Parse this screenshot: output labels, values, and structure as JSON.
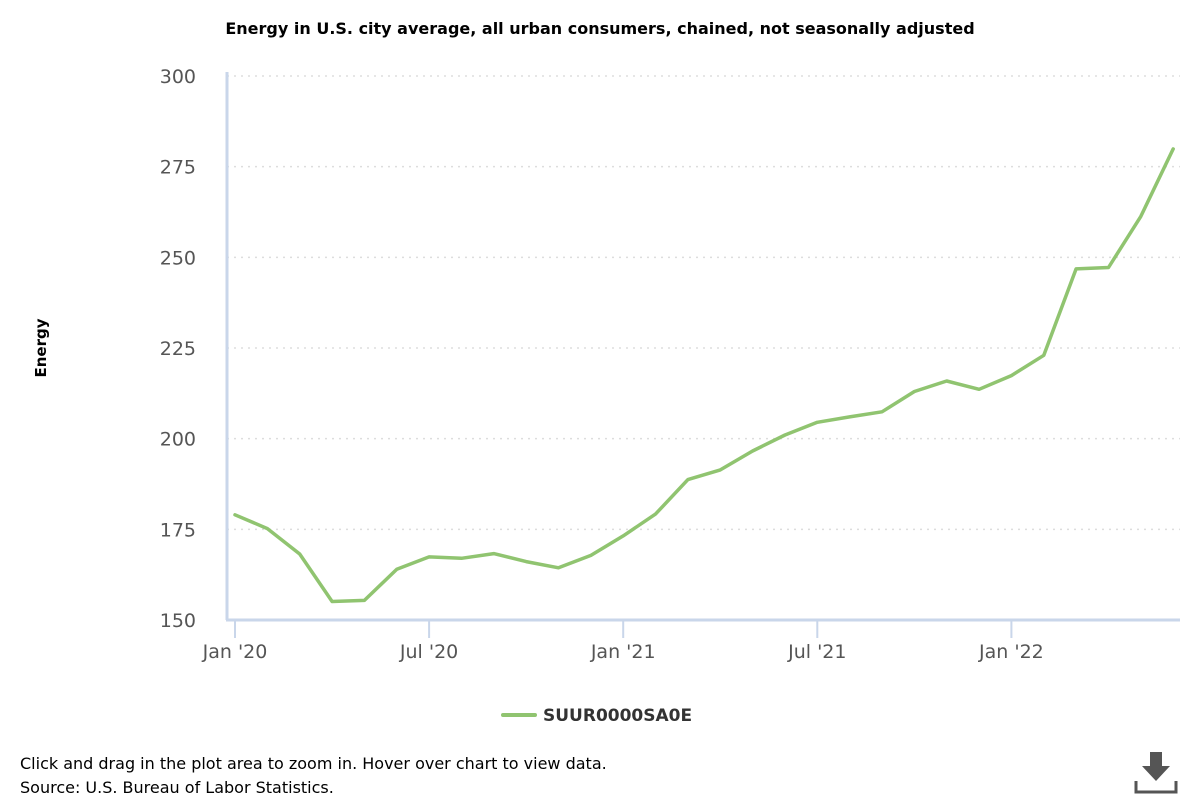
{
  "colors": {
    "series": "#90c470",
    "axis": "#c9d6ea",
    "grid": "#dddddd",
    "tick_text": "#555555",
    "icon": "#555555"
  },
  "chart_data": {
    "type": "line",
    "title": "Energy in U.S. city average, all urban consumers, chained, not seasonally adjusted",
    "ylabel": "Energy",
    "xlabel": "",
    "ylim": [
      150,
      300
    ],
    "yticks": [
      "150",
      "175",
      "200",
      "225",
      "250",
      "275",
      "300"
    ],
    "xticks": [
      {
        "label": "Jan '20",
        "date": "2020-01"
      },
      {
        "label": "Jul '20",
        "date": "2020-07"
      },
      {
        "label": "Jan '21",
        "date": "2021-01"
      },
      {
        "label": "Jul '21",
        "date": "2021-07"
      },
      {
        "label": "Jan '22",
        "date": "2022-01"
      }
    ],
    "grid": "horizontal-dotted",
    "legend_position": "bottom-center",
    "series": [
      {
        "name": "SUUR0000SA0E",
        "x": [
          "2020-01",
          "2020-02",
          "2020-03",
          "2020-04",
          "2020-05",
          "2020-06",
          "2020-07",
          "2020-08",
          "2020-09",
          "2020-10",
          "2020-11",
          "2020-12",
          "2021-01",
          "2021-02",
          "2021-03",
          "2021-04",
          "2021-05",
          "2021-06",
          "2021-07",
          "2021-08",
          "2021-09",
          "2021-10",
          "2021-11",
          "2021-12",
          "2022-01",
          "2022-02",
          "2022-03",
          "2022-04",
          "2022-05",
          "2022-06"
        ],
        "values": [
          179.0,
          175.2,
          168.2,
          155.1,
          155.4,
          164.0,
          167.4,
          167.0,
          168.3,
          166.1,
          164.4,
          167.8,
          173.2,
          179.2,
          188.7,
          191.4,
          196.6,
          201.0,
          204.5,
          206.0,
          207.4,
          213.0,
          215.9,
          213.6,
          217.4,
          223.0,
          246.8,
          247.2,
          261.3,
          279.9
        ]
      }
    ]
  },
  "footer": {
    "line1": "Click and drag in the plot area to zoom in. Hover over chart to view data.",
    "line2": "Source: U.S. Bureau of Labor Statistics."
  },
  "icons": {
    "download": "download-icon"
  }
}
